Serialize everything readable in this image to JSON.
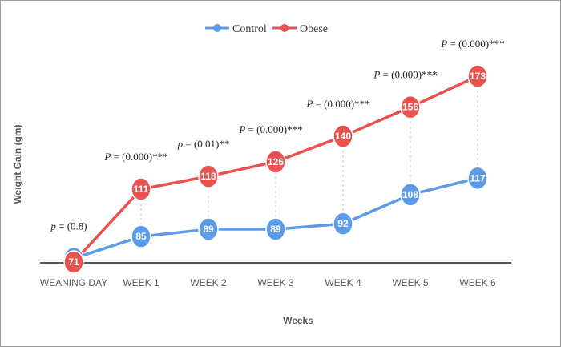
{
  "chart_data": {
    "type": "line",
    "title": "",
    "xlabel": "Weeks",
    "ylabel": "Weight Gain (gm)",
    "categories": [
      "WEANING DAY",
      "WEEK 1",
      "WEEK 2",
      "WEEK 3",
      "WEEK 4",
      "WEEK 5",
      "WEEK 6"
    ],
    "series": [
      {
        "name": "Control",
        "color": "#5b9bea",
        "values": [
          73,
          85,
          89,
          89,
          92,
          108,
          117
        ]
      },
      {
        "name": "Obese",
        "color": "#e8524f",
        "values": [
          71,
          111,
          118,
          126,
          140,
          156,
          173
        ]
      }
    ],
    "legend_position": "top-center",
    "grid": false,
    "p_values": [
      {
        "symbol": "p",
        "text": " = (0.8)"
      },
      {
        "symbol": "P",
        "text": " = (0.000)***"
      },
      {
        "symbol": "p",
        "text": " = (0.01)**"
      },
      {
        "symbol": "P",
        "text": " = (0.000)***"
      },
      {
        "symbol": "P",
        "text": " = (0.000)***"
      },
      {
        "symbol": "P",
        "text": " = (0.000)***"
      },
      {
        "symbol": "P",
        "text": " = (0.000)***"
      }
    ]
  }
}
